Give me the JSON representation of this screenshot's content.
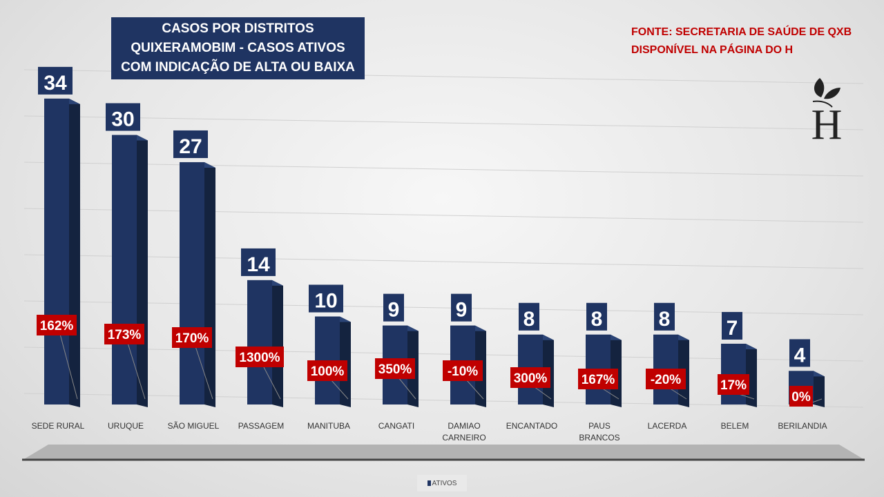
{
  "title_lines": [
    "CASOS  POR DISTRITOS",
    "QUIXERAMOBIM - CASOS ATIVOS",
    "COM INDICAÇÃO DE ALTA OU BAIXA"
  ],
  "source_lines": [
    "FONTE: SECRETARIA DE SAÚDE DE QXB",
    "DISPONÍVEL NA PÁGINA DO H"
  ],
  "logo_letter": "H",
  "colors": {
    "bar": "#1f3462",
    "bar_side": "#14233f",
    "label_bg": "#1f3462",
    "pct_bg": "#c00000",
    "source": "#c00000"
  },
  "chart_data": {
    "type": "bar",
    "title": "CASOS POR DISTRITOS QUIXERAMOBIM - CASOS ATIVOS COM INDICAÇÃO DE ALTA OU BAIXA",
    "categories": [
      "SEDE RURAL",
      "URUQUE",
      "SÃO MIGUEL",
      "PASSAGEM",
      "MANITUBA",
      "CANGATI",
      "DAMIAO CARNEIRO",
      "ENCANTADO",
      "PAUS BRANCOS",
      "LACERDA",
      "BELEM",
      "BERILANDIA"
    ],
    "series": [
      {
        "name": "ATIVOS",
        "values": [
          34,
          30,
          27,
          14,
          10,
          9,
          9,
          8,
          8,
          8,
          7,
          4
        ]
      }
    ],
    "change_labels": [
      "162%",
      "173%",
      "170%",
      "1300%",
      "100%",
      "350%",
      "-10%",
      "300%",
      "167%",
      "-20%",
      "17%",
      "0%"
    ],
    "ylim": [
      0,
      35
    ],
    "legend": "bottom"
  }
}
